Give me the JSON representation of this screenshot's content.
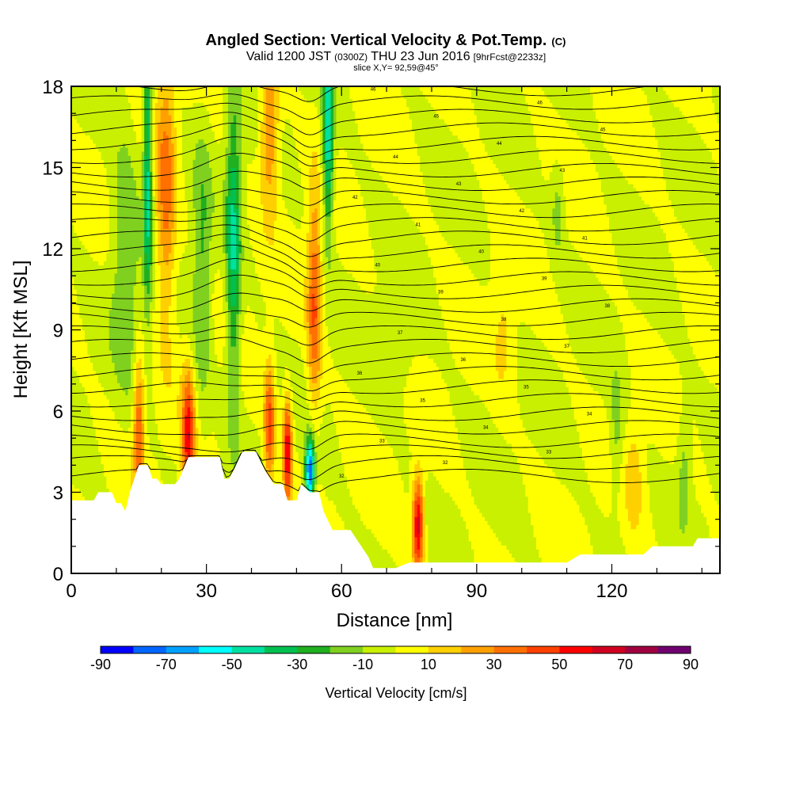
{
  "chart_data": {
    "type": "heatmap",
    "title": "Angled Section: Vertical Velocity & Pot.Temp.",
    "title_unit": "(C)",
    "subtitle_parts": [
      "Valid 1200 JST",
      "(0300Z)",
      "THU 23 Jun 2016",
      "[9hrFcst@2233z]"
    ],
    "slice_note": "slice X,Y= 92,59@45°",
    "xlabel": "Distance [nm]",
    "ylabel": "Height [Kft MSL]",
    "xlim": [
      0,
      144
    ],
    "ylim": [
      0,
      18
    ],
    "x_ticks": [
      "0",
      "30",
      "60",
      "90",
      "120"
    ],
    "x_tick_values": [
      0,
      30,
      60,
      90,
      120
    ],
    "y_ticks": [
      "0",
      "3",
      "6",
      "9",
      "12",
      "15",
      "18"
    ],
    "y_tick_values": [
      0,
      3,
      6,
      9,
      12,
      15,
      18
    ],
    "colorbar": {
      "label": "Vertical Velocity [cm/s]",
      "tick_labels": [
        "-90",
        "-70",
        "-50",
        "-30",
        "-10",
        "10",
        "30",
        "50",
        "70",
        "90"
      ],
      "colors": [
        "#0000ff",
        "#0066ff",
        "#00a0ff",
        "#00ffff",
        "#00e0a0",
        "#00c050",
        "#20b020",
        "#80d020",
        "#c8f000",
        "#ffff00",
        "#ffd000",
        "#ffa000",
        "#ff7000",
        "#ff4000",
        "#ff0000",
        "#d00020",
        "#a00040",
        "#700070"
      ]
    },
    "terrain_kft": [
      [
        0,
        2.7
      ],
      [
        5,
        2.7
      ],
      [
        6,
        3.0
      ],
      [
        9,
        3.0
      ],
      [
        10,
        2.6
      ],
      [
        11,
        2.6
      ],
      [
        12,
        2.3
      ],
      [
        13,
        3.0
      ],
      [
        14,
        3.5
      ],
      [
        15,
        4.0
      ],
      [
        17,
        4.0
      ],
      [
        18,
        3.5
      ],
      [
        19,
        3.5
      ],
      [
        20,
        3.3
      ],
      [
        23,
        3.3
      ],
      [
        24,
        3.5
      ],
      [
        26,
        4.3
      ],
      [
        33,
        4.3
      ],
      [
        34,
        3.5
      ],
      [
        35,
        3.5
      ],
      [
        36,
        3.8
      ],
      [
        38,
        4.5
      ],
      [
        41,
        4.5
      ],
      [
        43,
        3.8
      ],
      [
        45,
        3.3
      ],
      [
        47,
        3.3
      ],
      [
        48,
        2.7
      ],
      [
        50,
        2.7
      ],
      [
        51,
        3.3
      ],
      [
        53,
        3.0
      ],
      [
        55,
        3.0
      ],
      [
        56,
        2.3
      ],
      [
        58,
        1.6
      ],
      [
        62,
        1.6
      ],
      [
        64,
        1.1
      ],
      [
        66,
        0.6
      ],
      [
        67,
        0.2
      ],
      [
        70,
        0.2
      ],
      [
        72,
        0.2
      ],
      [
        75,
        0.4
      ],
      [
        80,
        0.4
      ],
      [
        88,
        0.4
      ],
      [
        110,
        0.4
      ],
      [
        113,
        0.7
      ],
      [
        127,
        0.7
      ],
      [
        129,
        1.0
      ],
      [
        138,
        1.0
      ],
      [
        139,
        1.3
      ],
      [
        144,
        1.3
      ]
    ],
    "updrafts": [
      {
        "x": 15,
        "y": 5.5,
        "w": 40,
        "ms": 1.2,
        "mh": 2.6
      },
      {
        "x": 26,
        "y": 5.0,
        "w": 55,
        "ms": 1.4,
        "mh": 2.4
      },
      {
        "x": 44,
        "y": 5.5,
        "w": 45,
        "ms": 1.2,
        "mh": 2.2
      },
      {
        "x": 48,
        "y": 4.5,
        "w": 60,
        "ms": 1.0,
        "mh": 2.0
      },
      {
        "x": 77,
        "y": 1.8,
        "w": 65,
        "ms": 1.2,
        "mh": 1.8
      },
      {
        "x": 54,
        "y": 10.0,
        "w": 40,
        "ms": 1.6,
        "mh": 4.0
      },
      {
        "x": 21,
        "y": 14.0,
        "w": 35,
        "ms": 2.2,
        "mh": 5.0
      },
      {
        "x": 44,
        "y": 16.5,
        "w": 35,
        "ms": 2.0,
        "mh": 3.0
      },
      {
        "x": 96,
        "y": 9.0,
        "w": 12,
        "ms": 2.5,
        "mh": 2.5
      },
      {
        "x": 125,
        "y": 3.5,
        "w": 15,
        "ms": 2.0,
        "mh": 2.0
      }
    ],
    "downdrafts": [
      {
        "x": 17,
        "y": 15.0,
        "w": -45,
        "ms": 1.0,
        "mh": 5.0
      },
      {
        "x": 36,
        "y": 12.0,
        "w": -40,
        "ms": 1.6,
        "mh": 6.0
      },
      {
        "x": 53,
        "y": 3.8,
        "w": -80,
        "ms": 1.0,
        "mh": 1.2
      },
      {
        "x": 57,
        "y": 16.0,
        "w": -50,
        "ms": 1.2,
        "mh": 3.5
      },
      {
        "x": 12,
        "y": 12.0,
        "w": -20,
        "ms": 3.0,
        "mh": 5.0
      },
      {
        "x": 29,
        "y": 11.0,
        "w": -22,
        "ms": 2.0,
        "mh": 5.0
      },
      {
        "x": 108,
        "y": 13.5,
        "w": -15,
        "ms": 1.5,
        "mh": 1.8
      },
      {
        "x": 121,
        "y": 5.0,
        "w": -15,
        "ms": 1.5,
        "mh": 2.5
      },
      {
        "x": 136,
        "y": 4.0,
        "w": -15,
        "ms": 1.5,
        "mh": 2.0
      },
      {
        "x": 72,
        "y": 8.5,
        "w": -12,
        "ms": 4.0,
        "mh": 2.0
      }
    ],
    "isentropes": [
      {
        "y": 3.6,
        "label": "32"
      },
      {
        "y": 4.1,
        "label": "32"
      },
      {
        "y": 4.5,
        "label": "33"
      },
      {
        "y": 4.9,
        "label": "33"
      },
      {
        "y": 5.4,
        "label": "34"
      },
      {
        "y": 5.9,
        "label": "34"
      },
      {
        "y": 6.4,
        "label": "35"
      },
      {
        "y": 6.9,
        "label": "35"
      },
      {
        "y": 7.4,
        "label": "36"
      },
      {
        "y": 7.9,
        "label": "36"
      },
      {
        "y": 8.4,
        "label": "37"
      },
      {
        "y": 8.9,
        "label": "37"
      },
      {
        "y": 9.4,
        "label": "38"
      },
      {
        "y": 9.9,
        "label": "38"
      },
      {
        "y": 10.4,
        "label": "39"
      },
      {
        "y": 10.9,
        "label": "39"
      },
      {
        "y": 11.4,
        "label": "40"
      },
      {
        "y": 11.9,
        "label": "40"
      },
      {
        "y": 12.4,
        "label": "41"
      },
      {
        "y": 12.9,
        "label": "41"
      },
      {
        "y": 13.4,
        "label": "42"
      },
      {
        "y": 13.9,
        "label": "42"
      },
      {
        "y": 14.4,
        "label": "43"
      },
      {
        "y": 14.9,
        "label": "43"
      },
      {
        "y": 15.4,
        "label": "44"
      },
      {
        "y": 15.9,
        "label": "44"
      },
      {
        "y": 16.4,
        "label": "45"
      },
      {
        "y": 16.9,
        "label": "45"
      },
      {
        "y": 17.4,
        "label": "46"
      },
      {
        "y": 17.9,
        "label": "46"
      }
    ]
  }
}
